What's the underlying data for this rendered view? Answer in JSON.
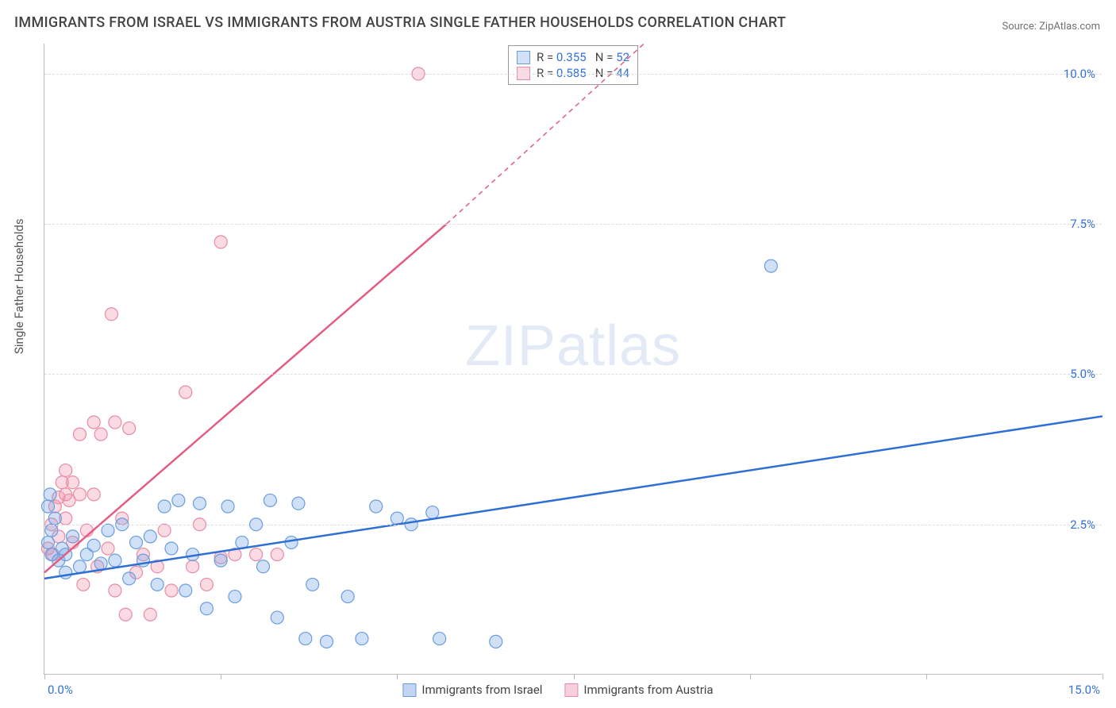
{
  "title": "IMMIGRANTS FROM ISRAEL VS IMMIGRANTS FROM AUSTRIA SINGLE FATHER HOUSEHOLDS CORRELATION CHART",
  "source": "Source: ZipAtlas.com",
  "ylabel": "Single Father Households",
  "watermark": "ZIPatlas",
  "chart": {
    "type": "scatter",
    "xlim": [
      0,
      15
    ],
    "ylim": [
      0,
      10.5
    ],
    "x_ticks": [
      0,
      2.5,
      5,
      7.5,
      10,
      12.5,
      15
    ],
    "x_tick_labels_shown": {
      "0": "0.0%",
      "15": "15.0%"
    },
    "y_gridlines": [
      2.5,
      5.0,
      7.5,
      10.0
    ],
    "y_tick_labels": {
      "2.5": "2.5%",
      "5.0": "5.0%",
      "7.5": "7.5%",
      "10.0": "10.0%"
    },
    "axis_label_color": "#3270d8",
    "background_color": "#ffffff",
    "grid_color": "#dddddd",
    "series": [
      {
        "name": "Immigrants from Israel",
        "color_fill": "rgba(120,165,230,0.35)",
        "color_stroke": "#6a9de0",
        "line_color": "#2e6fd6",
        "r_label": "R = ",
        "r_value": "0.355",
        "n_label": "N = ",
        "n_value": "52",
        "trend": {
          "x1": 0,
          "y1": 1.6,
          "x2": 15,
          "y2": 4.3
        },
        "points": [
          [
            0.05,
            2.2
          ],
          [
            0.1,
            2.0
          ],
          [
            0.1,
            2.4
          ],
          [
            0.15,
            2.6
          ],
          [
            0.2,
            1.9
          ],
          [
            0.25,
            2.1
          ],
          [
            0.3,
            1.7
          ],
          [
            0.4,
            2.3
          ],
          [
            0.5,
            1.8
          ],
          [
            0.6,
            2.0
          ],
          [
            0.7,
            2.15
          ],
          [
            0.8,
            1.85
          ],
          [
            0.9,
            2.4
          ],
          [
            1.0,
            1.9
          ],
          [
            1.1,
            2.5
          ],
          [
            1.2,
            1.6
          ],
          [
            1.3,
            2.2
          ],
          [
            1.4,
            1.9
          ],
          [
            1.5,
            2.3
          ],
          [
            1.7,
            2.8
          ],
          [
            1.6,
            1.5
          ],
          [
            1.8,
            2.1
          ],
          [
            1.9,
            2.9
          ],
          [
            2.0,
            1.4
          ],
          [
            2.1,
            2.0
          ],
          [
            2.2,
            2.85
          ],
          [
            2.3,
            1.1
          ],
          [
            2.5,
            1.9
          ],
          [
            2.6,
            2.8
          ],
          [
            2.7,
            1.3
          ],
          [
            2.8,
            2.2
          ],
          [
            3.0,
            2.5
          ],
          [
            3.1,
            1.8
          ],
          [
            3.2,
            2.9
          ],
          [
            3.3,
            0.95
          ],
          [
            3.5,
            2.2
          ],
          [
            3.6,
            2.85
          ],
          [
            3.7,
            0.6
          ],
          [
            3.8,
            1.5
          ],
          [
            4.0,
            0.55
          ],
          [
            4.3,
            1.3
          ],
          [
            4.5,
            0.6
          ],
          [
            4.7,
            2.8
          ],
          [
            5.0,
            2.6
          ],
          [
            5.2,
            2.5
          ],
          [
            5.5,
            2.7
          ],
          [
            5.6,
            0.6
          ],
          [
            6.4,
            0.55
          ],
          [
            10.3,
            6.8
          ],
          [
            0.05,
            2.8
          ],
          [
            0.08,
            3.0
          ],
          [
            0.3,
            2.0
          ]
        ]
      },
      {
        "name": "Immigrants from Austria",
        "color_fill": "rgba(240,150,175,0.35)",
        "color_stroke": "#e88ba5",
        "line_color": "#e35d82",
        "r_label": "R = ",
        "r_value": "0.585",
        "n_label": "N = ",
        "n_value": "44",
        "trend": {
          "x1": 0,
          "y1": 1.7,
          "x2": 5.7,
          "y2": 7.5
        },
        "trend_dashed_ext": {
          "x1": 5.7,
          "y1": 7.5,
          "x2": 8.5,
          "y2": 10.5
        },
        "points": [
          [
            0.05,
            2.1
          ],
          [
            0.1,
            2.5
          ],
          [
            0.12,
            2.0
          ],
          [
            0.15,
            2.8
          ],
          [
            0.2,
            2.3
          ],
          [
            0.2,
            2.95
          ],
          [
            0.25,
            3.2
          ],
          [
            0.3,
            2.6
          ],
          [
            0.3,
            3.4
          ],
          [
            0.35,
            2.9
          ],
          [
            0.4,
            2.2
          ],
          [
            0.4,
            3.2
          ],
          [
            0.5,
            3.0
          ],
          [
            0.5,
            4.0
          ],
          [
            0.55,
            1.5
          ],
          [
            0.6,
            2.4
          ],
          [
            0.7,
            3.0
          ],
          [
            0.7,
            4.2
          ],
          [
            0.75,
            1.8
          ],
          [
            0.8,
            4.0
          ],
          [
            0.9,
            2.1
          ],
          [
            0.95,
            6.0
          ],
          [
            1.0,
            1.4
          ],
          [
            1.0,
            4.2
          ],
          [
            1.1,
            2.6
          ],
          [
            1.15,
            1.0
          ],
          [
            1.2,
            4.1
          ],
          [
            1.3,
            1.7
          ],
          [
            1.4,
            2.0
          ],
          [
            1.5,
            1.0
          ],
          [
            1.6,
            1.8
          ],
          [
            1.7,
            2.4
          ],
          [
            1.8,
            1.4
          ],
          [
            2.0,
            4.7
          ],
          [
            2.1,
            1.8
          ],
          [
            2.2,
            2.5
          ],
          [
            2.3,
            1.5
          ],
          [
            2.5,
            1.95
          ],
          [
            2.5,
            7.2
          ],
          [
            2.7,
            2.0
          ],
          [
            3.0,
            2.0
          ],
          [
            3.3,
            2.0
          ],
          [
            5.3,
            10.0
          ],
          [
            0.3,
            3.0
          ]
        ]
      }
    ]
  },
  "legend_bottom": [
    {
      "swatch_fill": "rgba(120,165,230,0.45)",
      "swatch_stroke": "#6a9de0",
      "label": "Immigrants from Israel"
    },
    {
      "swatch_fill": "rgba(240,150,175,0.45)",
      "swatch_stroke": "#e88ba5",
      "label": "Immigrants from Austria"
    }
  ]
}
